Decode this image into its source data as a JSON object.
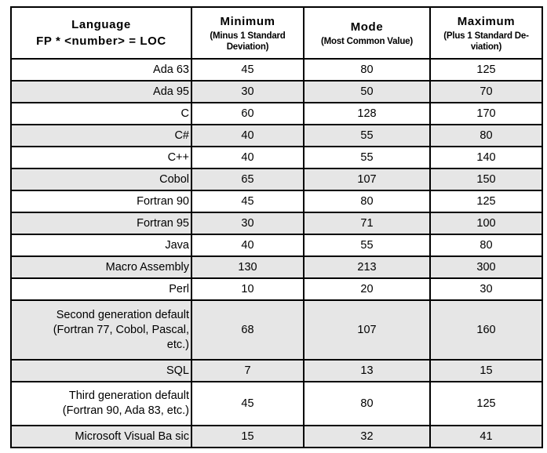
{
  "header": {
    "language": "Language\nFP * <number> = LOC",
    "minimum_title": "Minimum",
    "minimum_sub": "(Minus 1 Standard\nDeviation)",
    "mode_title": "Mode",
    "mode_sub": "(Most Common Value)",
    "maximum_title": "Maximum",
    "maximum_sub": "(Plus 1 Standard De-\nviation)"
  },
  "colors": {
    "row_shade": "#e6e6e6",
    "border": "#000000",
    "background": "#ffffff"
  },
  "chart_data": {
    "type": "table",
    "title": "FP * <number> = LOC conversion factors by language",
    "columns": [
      "Language  FP * <number> = LOC",
      "Minimum (Minus 1 Standard Deviation)",
      "Mode (Most Common Value)",
      "Maximum (Plus 1 Standard Deviation)"
    ],
    "rows": [
      {
        "language": "Ada 63",
        "minimum": 45,
        "mode": 80,
        "maximum": 125
      },
      {
        "language": "Ada 95",
        "minimum": 30,
        "mode": 50,
        "maximum": 70
      },
      {
        "language": "C",
        "minimum": 60,
        "mode": 128,
        "maximum": 170
      },
      {
        "language": "C#",
        "minimum": 40,
        "mode": 55,
        "maximum": 80
      },
      {
        "language": "C++",
        "minimum": 40,
        "mode": 55,
        "maximum": 140
      },
      {
        "language": "Cobol",
        "minimum": 65,
        "mode": 107,
        "maximum": 150
      },
      {
        "language": "Fortran 90",
        "minimum": 45,
        "mode": 80,
        "maximum": 125
      },
      {
        "language": "Fortran 95",
        "minimum": 30,
        "mode": 71,
        "maximum": 100
      },
      {
        "language": "Java",
        "minimum": 40,
        "mode": 55,
        "maximum": 80
      },
      {
        "language": "Macro Assembly",
        "minimum": 130,
        "mode": 213,
        "maximum": 300
      },
      {
        "language": "Perl",
        "minimum": 10,
        "mode": 20,
        "maximum": 30
      },
      {
        "language": "Second generation default\n(Fortran 77, Cobol, Pascal,\netc.)",
        "minimum": 68,
        "mode": 107,
        "maximum": 160
      },
      {
        "language": "SQL",
        "minimum": 7,
        "mode": 13,
        "maximum": 15
      },
      {
        "language": "Third generation default\n(Fortran 90, Ada 83, etc.)",
        "minimum": 45,
        "mode": 80,
        "maximum": 125
      },
      {
        "language": "Microsoft Visual Ba sic",
        "minimum": 15,
        "mode": 32,
        "maximum": 41
      }
    ]
  }
}
